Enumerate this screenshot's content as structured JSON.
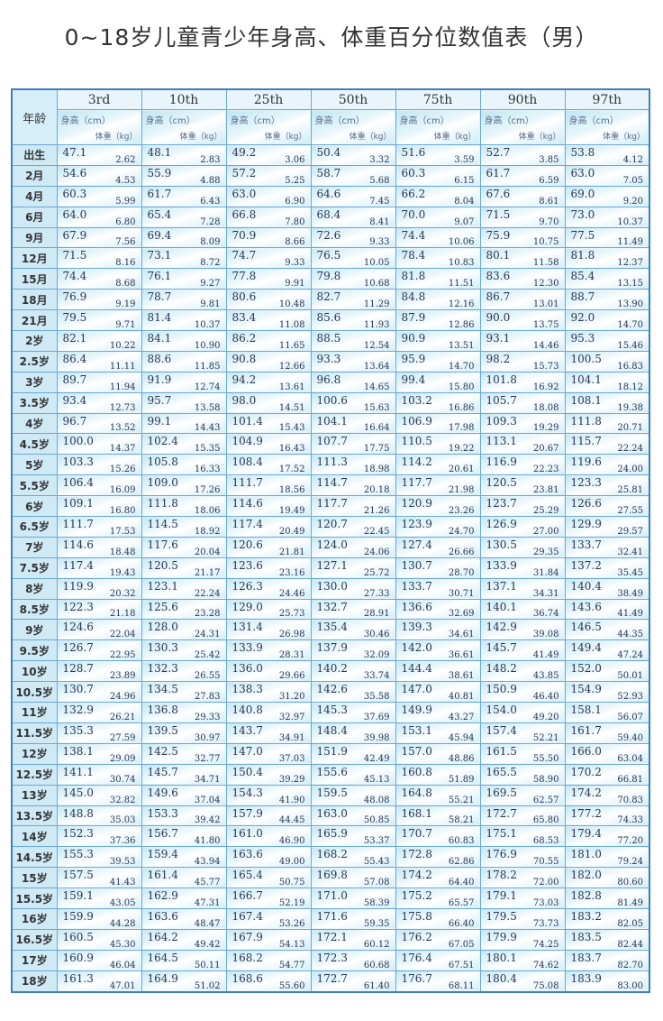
{
  "title": "0~18岁儿童青少年身高、体重百分位数值表（男）",
  "header": {
    "age_label": "年龄",
    "height_unit": "身高（cm）",
    "weight_unit": "体重（kg）",
    "percentiles": [
      "3rd",
      "10th",
      "25th",
      "50th",
      "75th",
      "90th",
      "97th"
    ]
  },
  "rows": [
    [
      "出生",
      "47.1",
      "2.62",
      "48.1",
      "2.83",
      "49.2",
      "3.06",
      "50.4",
      "3.32",
      "51.6",
      "3.59",
      "52.7",
      "3.85",
      "53.8",
      "4.12"
    ],
    [
      "2月",
      "54.6",
      "4.53",
      "55.9",
      "4.88",
      "57.2",
      "5.25",
      "58.7",
      "5.68",
      "60.3",
      "6.15",
      "61.7",
      "6.59",
      "63.0",
      "7.05"
    ],
    [
      "4月",
      "60.3",
      "5.99",
      "61.7",
      "6.43",
      "63.0",
      "6.90",
      "64.6",
      "7.45",
      "66.2",
      "8.04",
      "67.6",
      "8.61",
      "69.0",
      "9.20"
    ],
    [
      "6月",
      "64.0",
      "6.80",
      "65.4",
      "7.28",
      "66.8",
      "7.80",
      "68.4",
      "8.41",
      "70.0",
      "9.07",
      "71.5",
      "9.70",
      "73.0",
      "10.37"
    ],
    [
      "9月",
      "67.9",
      "7.56",
      "69.4",
      "8.09",
      "70.9",
      "8.66",
      "72.6",
      "9.33",
      "74.4",
      "10.06",
      "75.9",
      "10.75",
      "77.5",
      "11.49"
    ],
    [
      "12月",
      "71.5",
      "8.16",
      "73.1",
      "8.72",
      "74.7",
      "9.33",
      "76.5",
      "10.05",
      "78.4",
      "10.83",
      "80.1",
      "11.58",
      "81.8",
      "12.37"
    ],
    [
      "15月",
      "74.4",
      "8.68",
      "76.1",
      "9.27",
      "77.8",
      "9.91",
      "79.8",
      "10.68",
      "81.8",
      "11.51",
      "83.6",
      "12.30",
      "85.4",
      "13.15"
    ],
    [
      "18月",
      "76.9",
      "9.19",
      "78.7",
      "9.81",
      "80.6",
      "10.48",
      "82.7",
      "11.29",
      "84.8",
      "12.16",
      "86.7",
      "13.01",
      "88.7",
      "13.90"
    ],
    [
      "21月",
      "79.5",
      "9.71",
      "81.4",
      "10.37",
      "83.4",
      "11.08",
      "85.6",
      "11.93",
      "87.9",
      "12.86",
      "90.0",
      "13.75",
      "92.0",
      "14.70"
    ],
    [
      "2岁",
      "82.1",
      "10.22",
      "84.1",
      "10.90",
      "86.2",
      "11.65",
      "88.5",
      "12.54",
      "90.9",
      "13.51",
      "93.1",
      "14.46",
      "95.3",
      "15.46"
    ],
    [
      "2.5岁",
      "86.4",
      "11.11",
      "88.6",
      "11.85",
      "90.8",
      "12.66",
      "93.3",
      "13.64",
      "95.9",
      "14.70",
      "98.2",
      "15.73",
      "100.5",
      "16.83"
    ],
    [
      "3岁",
      "89.7",
      "11.94",
      "91.9",
      "12.74",
      "94.2",
      "13.61",
      "96.8",
      "14.65",
      "99.4",
      "15.80",
      "101.8",
      "16.92",
      "104.1",
      "18.12"
    ],
    [
      "3.5岁",
      "93.4",
      "12.73",
      "95.7",
      "13.58",
      "98.0",
      "14.51",
      "100.6",
      "15.63",
      "103.2",
      "16.86",
      "105.7",
      "18.08",
      "108.1",
      "19.38"
    ],
    [
      "4岁",
      "96.7",
      "13.52",
      "99.1",
      "14.43",
      "101.4",
      "15.43",
      "104.1",
      "16.64",
      "106.9",
      "17.98",
      "109.3",
      "19.29",
      "111.8",
      "20.71"
    ],
    [
      "4.5岁",
      "100.0",
      "14.37",
      "102.4",
      "15.35",
      "104.9",
      "16.43",
      "107.7",
      "17.75",
      "110.5",
      "19.22",
      "113.1",
      "20.67",
      "115.7",
      "22.24"
    ],
    [
      "5岁",
      "103.3",
      "15.26",
      "105.8",
      "16.33",
      "108.4",
      "17.52",
      "111.3",
      "18.98",
      "114.2",
      "20.61",
      "116.9",
      "22.23",
      "119.6",
      "24.00"
    ],
    [
      "5.5岁",
      "106.4",
      "16.09",
      "109.0",
      "17.26",
      "111.7",
      "18.56",
      "114.7",
      "20.18",
      "117.7",
      "21.98",
      "120.5",
      "23.81",
      "123.3",
      "25.81"
    ],
    [
      "6岁",
      "109.1",
      "16.80",
      "111.8",
      "18.06",
      "114.6",
      "19.49",
      "117.7",
      "21.26",
      "120.9",
      "23.26",
      "123.7",
      "25.29",
      "126.6",
      "27.55"
    ],
    [
      "6.5岁",
      "111.7",
      "17.53",
      "114.5",
      "18.92",
      "117.4",
      "20.49",
      "120.7",
      "22.45",
      "123.9",
      "24.70",
      "126.9",
      "27.00",
      "129.9",
      "29.57"
    ],
    [
      "7岁",
      "114.6",
      "18.48",
      "117.6",
      "20.04",
      "120.6",
      "21.81",
      "124.0",
      "24.06",
      "127.4",
      "26.66",
      "130.5",
      "29.35",
      "133.7",
      "32.41"
    ],
    [
      "7.5岁",
      "117.4",
      "19.43",
      "120.5",
      "21.17",
      "123.6",
      "23.16",
      "127.1",
      "25.72",
      "130.7",
      "28.70",
      "133.9",
      "31.84",
      "137.2",
      "35.45"
    ],
    [
      "8岁",
      "119.9",
      "20.32",
      "123.1",
      "22.24",
      "126.3",
      "24.46",
      "130.0",
      "27.33",
      "133.7",
      "30.71",
      "137.1",
      "34.31",
      "140.4",
      "38.49"
    ],
    [
      "8.5岁",
      "122.3",
      "21.18",
      "125.6",
      "23.28",
      "129.0",
      "25.73",
      "132.7",
      "28.91",
      "136.6",
      "32.69",
      "140.1",
      "36.74",
      "143.6",
      "41.49"
    ],
    [
      "9岁",
      "124.6",
      "22.04",
      "128.0",
      "24.31",
      "131.4",
      "26.98",
      "135.4",
      "30.46",
      "139.3",
      "34.61",
      "142.9",
      "39.08",
      "146.5",
      "44.35"
    ],
    [
      "9.5岁",
      "126.7",
      "22.95",
      "130.3",
      "25.42",
      "133.9",
      "28.31",
      "137.9",
      "32.09",
      "142.0",
      "36.61",
      "145.7",
      "41.49",
      "149.4",
      "47.24"
    ],
    [
      "10岁",
      "128.7",
      "23.89",
      "132.3",
      "26.55",
      "136.0",
      "29.66",
      "140.2",
      "33.74",
      "144.4",
      "38.61",
      "148.2",
      "43.85",
      "152.0",
      "50.01"
    ],
    [
      "10.5岁",
      "130.7",
      "24.96",
      "134.5",
      "27.83",
      "138.3",
      "31.20",
      "142.6",
      "35.58",
      "147.0",
      "40.81",
      "150.9",
      "46.40",
      "154.9",
      "52.93"
    ],
    [
      "11岁",
      "132.9",
      "26.21",
      "136.8",
      "29.33",
      "140.8",
      "32.97",
      "145.3",
      "37.69",
      "149.9",
      "43.27",
      "154.0",
      "49.20",
      "158.1",
      "56.07"
    ],
    [
      "11.5岁",
      "135.3",
      "27.59",
      "139.5",
      "30.97",
      "143.7",
      "34.91",
      "148.4",
      "39.98",
      "153.1",
      "45.94",
      "157.4",
      "52.21",
      "161.7",
      "59.40"
    ],
    [
      "12岁",
      "138.1",
      "29.09",
      "142.5",
      "32.77",
      "147.0",
      "37.03",
      "151.9",
      "42.49",
      "157.0",
      "48.86",
      "161.5",
      "55.50",
      "166.0",
      "63.04"
    ],
    [
      "12.5岁",
      "141.1",
      "30.74",
      "145.7",
      "34.71",
      "150.4",
      "39.29",
      "155.6",
      "45.13",
      "160.8",
      "51.89",
      "165.5",
      "58.90",
      "170.2",
      "66.81"
    ],
    [
      "13岁",
      "145.0",
      "32.82",
      "149.6",
      "37.04",
      "154.3",
      "41.90",
      "159.5",
      "48.08",
      "164.8",
      "55.21",
      "169.5",
      "62.57",
      "174.2",
      "70.83"
    ],
    [
      "13.5岁",
      "148.8",
      "35.03",
      "153.3",
      "39.42",
      "157.9",
      "44.45",
      "163.0",
      "50.85",
      "168.1",
      "58.21",
      "172.7",
      "65.80",
      "177.2",
      "74.33"
    ],
    [
      "14岁",
      "152.3",
      "37.36",
      "156.7",
      "41.80",
      "161.0",
      "46.90",
      "165.9",
      "53.37",
      "170.7",
      "60.83",
      "175.1",
      "68.53",
      "179.4",
      "77.20"
    ],
    [
      "14.5岁",
      "155.3",
      "39.53",
      "159.4",
      "43.94",
      "163.6",
      "49.00",
      "168.2",
      "55.43",
      "172.8",
      "62.86",
      "176.9",
      "70.55",
      "181.0",
      "79.24"
    ],
    [
      "15岁",
      "157.5",
      "41.43",
      "161.4",
      "45.77",
      "165.4",
      "50.75",
      "169.8",
      "57.08",
      "174.2",
      "64.40",
      "178.2",
      "72.00",
      "182.0",
      "80.60"
    ],
    [
      "15.5岁",
      "159.1",
      "43.05",
      "162.9",
      "47.31",
      "166.7",
      "52.19",
      "171.0",
      "58.39",
      "175.2",
      "65.57",
      "179.1",
      "73.03",
      "182.8",
      "81.49"
    ],
    [
      "16岁",
      "159.9",
      "44.28",
      "163.6",
      "48.47",
      "167.4",
      "53.26",
      "171.6",
      "59.35",
      "175.8",
      "66.40",
      "179.5",
      "73.73",
      "183.2",
      "82.05"
    ],
    [
      "16.5岁",
      "160.5",
      "45.30",
      "164.2",
      "49.42",
      "167.9",
      "54.13",
      "172.1",
      "60.12",
      "176.2",
      "67.05",
      "179.9",
      "74.25",
      "183.5",
      "82.44"
    ],
    [
      "17岁",
      "160.9",
      "46.04",
      "164.5",
      "50.11",
      "168.2",
      "54.77",
      "172.3",
      "60.68",
      "176.4",
      "67.51",
      "180.1",
      "74.62",
      "183.7",
      "82.70"
    ],
    [
      "18岁",
      "161.3",
      "47.01",
      "164.9",
      "51.02",
      "168.6",
      "55.60",
      "172.7",
      "61.40",
      "176.7",
      "68.11",
      "180.4",
      "75.08",
      "183.9",
      "83.00"
    ]
  ]
}
